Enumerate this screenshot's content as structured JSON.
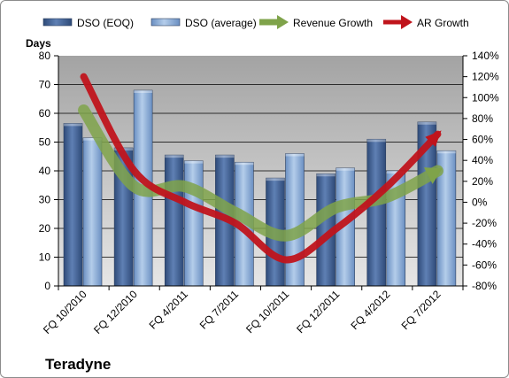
{
  "chart_data": {
    "type": "bar",
    "title": "",
    "company": "Teradyne",
    "ylabel": "Days",
    "ylim": [
      0,
      80
    ],
    "y_ticks": [
      "0",
      "10",
      "20",
      "30",
      "40",
      "50",
      "60",
      "70",
      "80"
    ],
    "y2lim": [
      -80,
      140
    ],
    "y2_ticks": [
      "-80%",
      "-60%",
      "-40%",
      "-20%",
      "0%",
      "20%",
      "40%",
      "60%",
      "80%",
      "100%",
      "120%",
      "140%"
    ],
    "categories": [
      "FQ 10/2010",
      "FQ 12/2010",
      "FQ 4/2011",
      "FQ 7/2011",
      "FQ 10/2011",
      "FQ 12/2011",
      "FQ 4/2012",
      "FQ 7/2012"
    ],
    "series": [
      {
        "name": "DSO (EOQ)",
        "kind": "bar",
        "axis": "left",
        "color": "#4f6fa0",
        "values": [
          56.5,
          48,
          45.5,
          45.5,
          37.5,
          39,
          51,
          57
        ]
      },
      {
        "name": "DSO (average)",
        "kind": "bar",
        "axis": "left",
        "color": "#8fb1d9",
        "values": [
          51.5,
          68,
          43.5,
          43,
          46,
          41,
          40,
          47
        ]
      },
      {
        "name": "Revenue Growth",
        "kind": "line",
        "axis": "right",
        "color": "#7fa34a",
        "values": [
          88,
          15,
          15,
          -10,
          -32,
          -5,
          5,
          30
        ]
      },
      {
        "name": "AR Growth",
        "kind": "line",
        "axis": "right",
        "color": "#c0141c",
        "values": [
          120,
          30,
          0,
          -20,
          -55,
          -25,
          15,
          65
        ]
      }
    ],
    "legend_position": "top",
    "grid": true
  }
}
